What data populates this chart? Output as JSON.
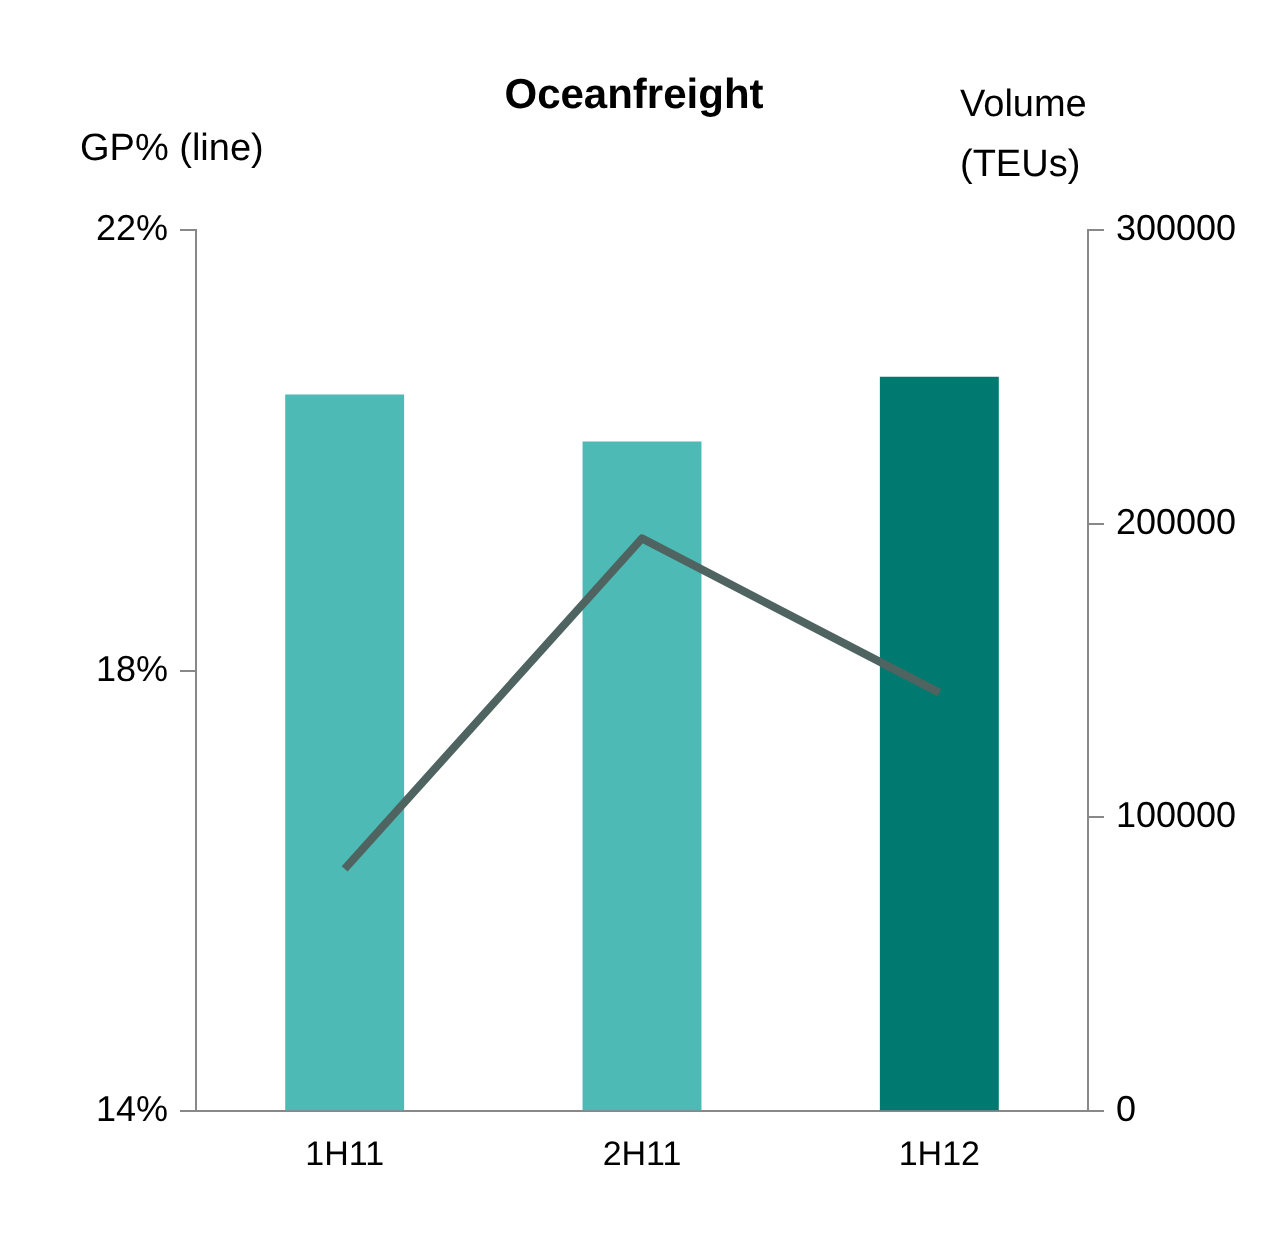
{
  "chart_data": {
    "type": "bar",
    "title": "Oceanfreight",
    "ylabel": "GP% (line)",
    "y2label": "Volume (TEUs)",
    "categories": [
      "1H11",
      "2H11",
      "1H12"
    ],
    "series": [
      {
        "axis": "y2",
        "colors": [
          "#4dbab5",
          "#4dbab5",
          "#007a70"
        ],
        "values": [
          244000,
          228000,
          250000
        ]
      },
      {
        "type": "line",
        "axis": "y",
        "color": "#4f6460",
        "values": [
          16.2,
          19.2,
          17.8
        ]
      }
    ],
    "ylim": [
      14,
      22
    ],
    "yticks": [
      {
        "value": 14,
        "label": "14%"
      },
      {
        "value": 18,
        "label": "18%"
      },
      {
        "value": 22,
        "label": "22%"
      }
    ],
    "y2lim": [
      0,
      300000
    ],
    "y2ticks": [
      0,
      100000,
      200000,
      300000
    ],
    "grid": false,
    "legend": false,
    "marker": "none"
  }
}
